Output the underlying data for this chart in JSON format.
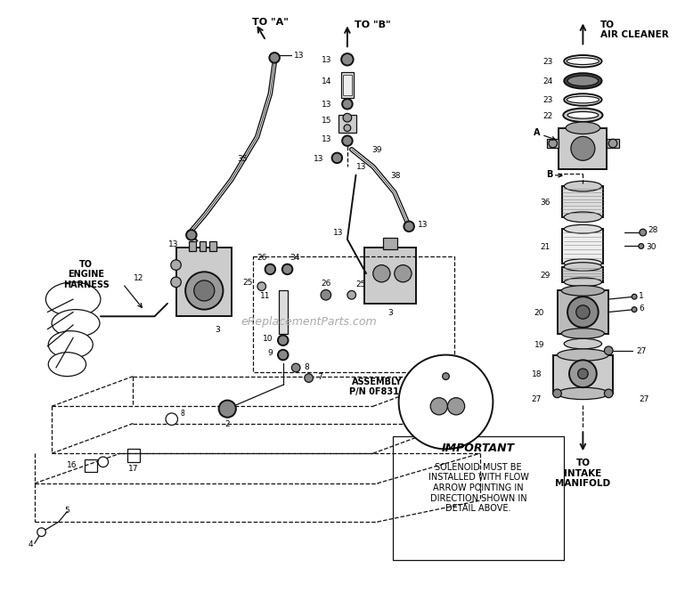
{
  "bg_color": "#ffffff",
  "line_color": "#111111",
  "figsize": [
    7.5,
    6.82
  ],
  "dpi": 100,
  "watermark": "eReplacementParts.com",
  "important_text": "IMPORTANT",
  "important_body": "SOLENOID MUST BE\nINSTALLED WITH FLOW\nARROW POINTING IN\nDIRECTION SHOWN IN\nDETAIL ABOVE.",
  "to_a": "TO \"A\"",
  "to_b": "TO \"B\"",
  "to_engine": "TO\nENGINE\nHARNESS",
  "to_air": "TO\nAIR CLEANER",
  "to_intake": "TO\nINTAKE\nMANIFOLD",
  "assembly": "ASSEMBLY\nP/N 0F8313"
}
